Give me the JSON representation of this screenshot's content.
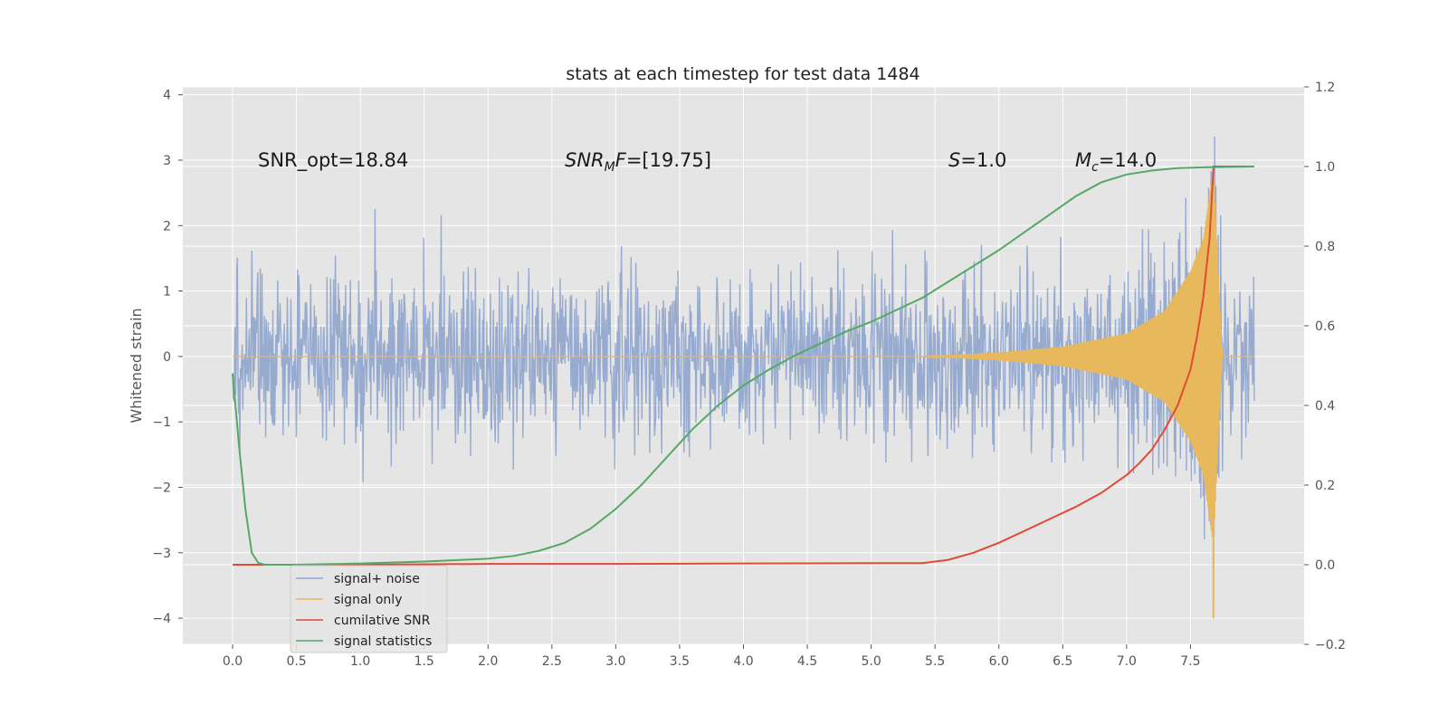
{
  "chart_data": {
    "type": "line",
    "title": "stats at each timestep for test data 1484",
    "ylabel": "Whitened strain",
    "xlabel": "",
    "xlim": [
      -0.39,
      8.39
    ],
    "ylim": [
      -4.4,
      4.12
    ],
    "y2lim": [
      -0.2,
      1.2
    ],
    "x_ticks": [
      "0.0",
      "0.5",
      "1.0",
      "1.5",
      "2.0",
      "2.5",
      "3.0",
      "3.5",
      "4.0",
      "4.5",
      "5.0",
      "5.5",
      "6.0",
      "6.5",
      "7.0",
      "7.5"
    ],
    "y_ticks": [
      "4",
      "3",
      "2",
      "1",
      "0",
      "−1",
      "−2",
      "−3",
      "−4"
    ],
    "y2_ticks": [
      "1.2",
      "1.0",
      "0.8",
      "0.6",
      "0.4",
      "0.2",
      "0.0",
      "−0.2"
    ],
    "grid": true,
    "legend_position": "lower-left",
    "annotations": {
      "snr_opt": "SNR_opt=18.84",
      "snr_mf_main": "SNR",
      "snr_mf_sub": "M",
      "snr_mf_rest": "F",
      "snr_mf_value": "=[19.75]",
      "s_label": "S",
      "s_value": "=1.0",
      "mc_label": "M",
      "mc_sub": "c",
      "mc_value": "=14.0"
    },
    "series": [
      {
        "name": "signal+ noise",
        "color": "#92a8cf",
        "axis": "left",
        "description_values": "noise-dominated whitened strain, roughly between -3.9 and 3.7 across t = 0.0 to 8.0",
        "x_range": [
          0.0,
          8.0
        ],
        "y_extremes": {
          "max": 3.7,
          "min": -3.85
        }
      },
      {
        "name": "signal only",
        "color": "#e7b85c",
        "axis": "left",
        "chirp_start": 5.4,
        "merger_t": 7.68,
        "peak_pos": 2.9,
        "peak_neg": -4.0,
        "envelope": [
          [
            5.4,
            0.0
          ],
          [
            6.0,
            0.06
          ],
          [
            6.5,
            0.15
          ],
          [
            7.0,
            0.35
          ],
          [
            7.3,
            0.7
          ],
          [
            7.5,
            1.3
          ],
          [
            7.6,
            1.8
          ],
          [
            7.68,
            2.9
          ],
          [
            7.75,
            0.0
          ],
          [
            8.0,
            0.0
          ]
        ]
      },
      {
        "name": "cumilative SNR",
        "color": "#e24a33",
        "axis": "right",
        "x": [
          0.0,
          1.0,
          2.0,
          3.0,
          4.0,
          5.0,
          5.4,
          5.6,
          5.8,
          6.0,
          6.2,
          6.4,
          6.6,
          6.8,
          7.0,
          7.1,
          7.2,
          7.3,
          7.4,
          7.5,
          7.55,
          7.6,
          7.65,
          7.68,
          7.75,
          8.0
        ],
        "y": [
          0.0,
          0.0,
          0.002,
          0.002,
          0.003,
          0.004,
          0.004,
          0.012,
          0.03,
          0.055,
          0.085,
          0.115,
          0.145,
          0.18,
          0.225,
          0.255,
          0.29,
          0.34,
          0.4,
          0.49,
          0.57,
          0.67,
          0.82,
          1.0,
          1.0,
          1.0
        ]
      },
      {
        "name": "signal statistics",
        "color": "#55a868",
        "axis": "right",
        "x": [
          0.0,
          0.05,
          0.1,
          0.15,
          0.2,
          0.25,
          0.3,
          0.5,
          1.0,
          1.5,
          2.0,
          2.2,
          2.4,
          2.6,
          2.8,
          3.0,
          3.2,
          3.4,
          3.6,
          3.8,
          4.0,
          4.2,
          4.4,
          4.6,
          4.8,
          5.0,
          5.2,
          5.4,
          5.6,
          5.8,
          6.0,
          6.2,
          6.4,
          6.6,
          6.8,
          7.0,
          7.2,
          7.4,
          7.6,
          8.0
        ],
        "y": [
          0.48,
          0.3,
          0.14,
          0.03,
          0.005,
          0.0,
          0.0,
          0.0,
          0.003,
          0.008,
          0.015,
          0.022,
          0.035,
          0.055,
          0.09,
          0.14,
          0.2,
          0.27,
          0.34,
          0.4,
          0.45,
          0.49,
          0.525,
          0.555,
          0.585,
          0.61,
          0.64,
          0.67,
          0.71,
          0.75,
          0.79,
          0.835,
          0.88,
          0.925,
          0.96,
          0.98,
          0.99,
          0.996,
          0.998,
          1.0
        ]
      }
    ]
  }
}
